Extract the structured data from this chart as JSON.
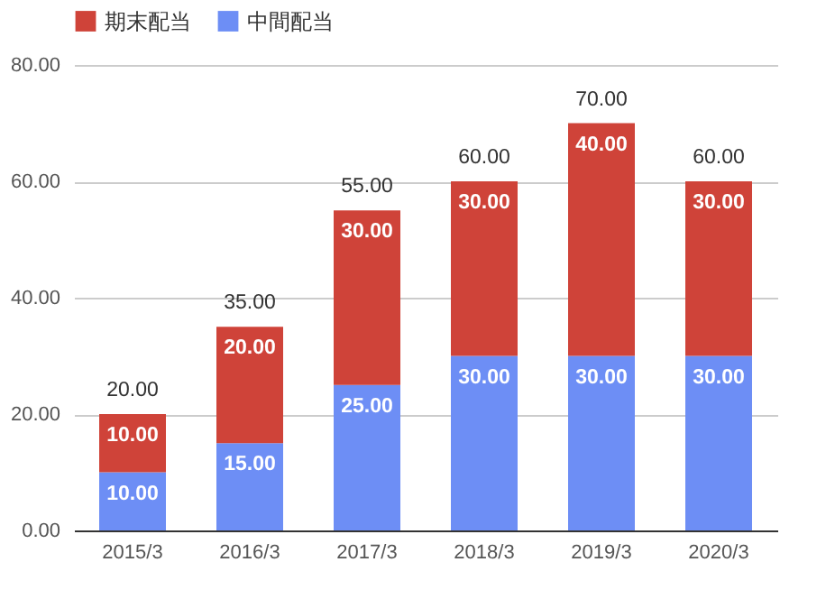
{
  "chart_data": {
    "type": "bar",
    "stacked": true,
    "categories": [
      "2015/3",
      "2016/3",
      "2017/3",
      "2018/3",
      "2019/3",
      "2020/3"
    ],
    "series": [
      {
        "name": "中間配当",
        "color": "#6d8ef5",
        "values": [
          10,
          15,
          25,
          30,
          30,
          30
        ],
        "value_labels": [
          "10.00",
          "15.00",
          "25.00",
          "30.00",
          "30.00",
          "30.00"
        ]
      },
      {
        "name": "期末配当",
        "color": "#cf4339",
        "values": [
          10,
          20,
          30,
          30,
          40,
          30
        ],
        "value_labels": [
          "10.00",
          "20.00",
          "30.00",
          "30.00",
          "40.00",
          "30.00"
        ]
      }
    ],
    "totals": [
      "20.00",
      "35.00",
      "55.00",
      "60.00",
      "70.00",
      "60.00"
    ],
    "ylim": [
      0,
      80
    ],
    "yticks": [
      {
        "value": 0,
        "label": "0.00"
      },
      {
        "value": 20,
        "label": "20.00"
      },
      {
        "value": 40,
        "label": "40.00"
      },
      {
        "value": 60,
        "label": "60.00"
      },
      {
        "value": 80,
        "label": "80.00"
      }
    ],
    "grid": "y",
    "legend": "top"
  }
}
